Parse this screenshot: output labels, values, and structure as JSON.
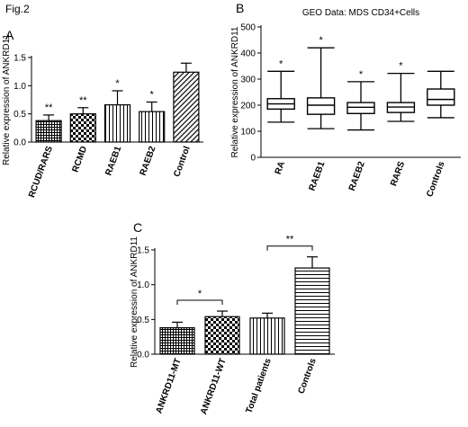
{
  "figure_label": "Fig.2",
  "chart_data": [
    {
      "panel": "A",
      "type": "bar",
      "title": "",
      "xlabel": "",
      "ylabel": "Relative expression of ANKRD11",
      "categories": [
        "RCUD/RARS",
        "RCMD",
        "RAEB1",
        "RAEB2",
        "Control"
      ],
      "values": [
        0.38,
        0.5,
        0.66,
        0.54,
        1.24
      ],
      "errors": [
        0.1,
        0.11,
        0.25,
        0.17,
        0.16
      ],
      "significance": [
        "**",
        "**",
        "*",
        "*",
        ""
      ],
      "patterns": [
        "grid",
        "checker",
        "vertical",
        "vertical",
        "diagonal"
      ],
      "ylim": [
        0,
        1.5
      ],
      "yticks": [
        0.0,
        0.5,
        1.0,
        1.5
      ],
      "ytick_labels": [
        "0.0",
        "0.5",
        "1.0",
        "1.5"
      ],
      "grid": false,
      "legend": "none"
    },
    {
      "panel": "B",
      "type": "box",
      "title": "GEO Data:  MDS CD34+Cells",
      "xlabel": "",
      "ylabel": "Relative expression of ANKRD11",
      "categories": [
        "RA",
        "RAEB1",
        "RAEB2",
        "RARS",
        "Controls"
      ],
      "boxes": [
        {
          "min": 135,
          "q1": 185,
          "median": 205,
          "q3": 225,
          "max": 330
        },
        {
          "min": 110,
          "q1": 165,
          "median": 200,
          "q3": 228,
          "max": 420
        },
        {
          "min": 105,
          "q1": 168,
          "median": 192,
          "q3": 210,
          "max": 290
        },
        {
          "min": 138,
          "q1": 172,
          "median": 193,
          "q3": 210,
          "max": 322
        },
        {
          "min": 152,
          "q1": 200,
          "median": 222,
          "q3": 262,
          "max": 330
        }
      ],
      "significance": [
        "*",
        "*",
        "*",
        "*",
        ""
      ],
      "ylim": [
        0,
        500
      ],
      "yticks": [
        0,
        100,
        200,
        300,
        400,
        500
      ],
      "ytick_labels": [
        "0",
        "100",
        "200",
        "300",
        "400",
        "500"
      ],
      "grid": false,
      "legend": "none"
    },
    {
      "panel": "C",
      "type": "bar",
      "title": "",
      "xlabel": "",
      "ylabel": "Relative expression of ANKRD11",
      "categories": [
        "ANKRD11-MT",
        "ANKRD11-WT",
        "Total patients",
        "Controls"
      ],
      "values": [
        0.38,
        0.54,
        0.52,
        1.24
      ],
      "errors": [
        0.08,
        0.08,
        0.07,
        0.16
      ],
      "patterns": [
        "grid",
        "checker",
        "vertical",
        "horizontal"
      ],
      "comparisons": [
        {
          "from": 0,
          "to": 1,
          "label": "*"
        },
        {
          "from": 2,
          "to": 3,
          "label": "**"
        }
      ],
      "ylim": [
        0,
        1.5
      ],
      "yticks": [
        0.0,
        0.5,
        1.0,
        1.5
      ],
      "ytick_labels": [
        "0.0",
        "0.5",
        "1.0",
        "1.5"
      ],
      "grid": false,
      "legend": "none"
    }
  ]
}
